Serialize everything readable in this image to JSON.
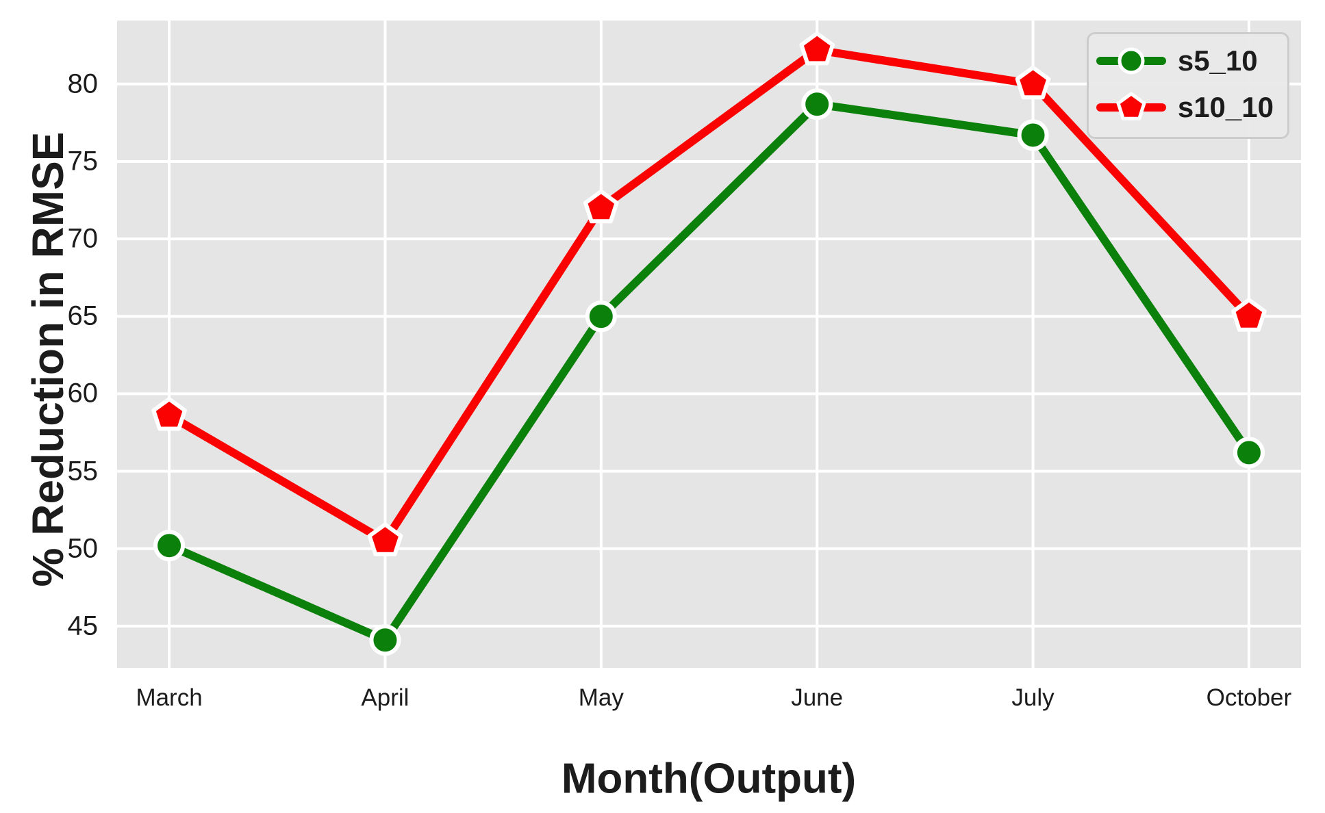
{
  "figure": {
    "background_color": "#ffffff",
    "plot_background_color": "#e5e5e5",
    "grid_color": "#ffffff",
    "text_color": "#1c1c1c",
    "legend_background_color": "#e9e9e9",
    "legend_border_color": "#cccccc"
  },
  "chart_data": {
    "type": "line",
    "title": "",
    "xlabel": "Month(Output)",
    "ylabel": "% Reduction in RMSE",
    "categories": [
      "March",
      "April",
      "May",
      "June",
      "July",
      "October"
    ],
    "y_ticks": [
      45,
      50,
      55,
      60,
      65,
      70,
      75,
      80
    ],
    "ylim": [
      42.3,
      84.1
    ],
    "grid": true,
    "legend_position": "upper right",
    "series": [
      {
        "name": "s5_10",
        "color": "#0b810b",
        "marker": "circle",
        "values": [
          50.2,
          44.1,
          65.0,
          78.7,
          76.7,
          56.2
        ]
      },
      {
        "name": "s10_10",
        "color": "#fb0202",
        "marker": "pentagon",
        "values": [
          58.6,
          50.5,
          72.0,
          82.2,
          80.0,
          65.0
        ]
      }
    ]
  }
}
